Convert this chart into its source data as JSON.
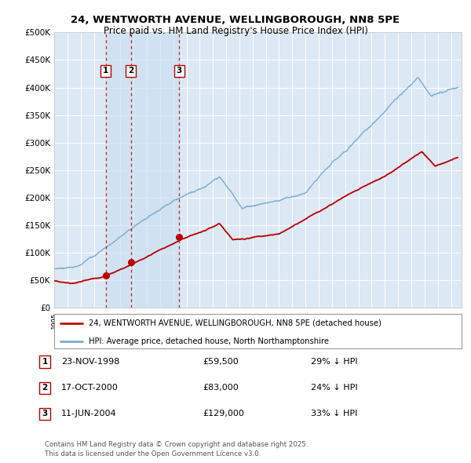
{
  "title": "24, WENTWORTH AVENUE, WELLINGBOROUGH, NN8 5PE",
  "subtitle": "Price paid vs. HM Land Registry's House Price Index (HPI)",
  "legend_line1": "24, WENTWORTH AVENUE, WELLINGBOROUGH, NN8 5PE (detached house)",
  "legend_line2": "HPI: Average price, detached house, North Northamptonshire",
  "footer": "Contains HM Land Registry data © Crown copyright and database right 2025.\nThis data is licensed under the Open Government Licence v3.0.",
  "sales": [
    {
      "num": 1,
      "date": "23-NOV-1998",
      "price": 59500,
      "hpi_note": "29% ↓ HPI",
      "year": 1998.9
    },
    {
      "num": 2,
      "date": "17-OCT-2000",
      "price": 83000,
      "hpi_note": "24% ↓ HPI",
      "year": 2000.8
    },
    {
      "num": 3,
      "date": "11-JUN-2004",
      "price": 129000,
      "hpi_note": "33% ↓ HPI",
      "year": 2004.45
    }
  ],
  "red_color": "#bb0000",
  "blue_color": "#7aaccc",
  "shade_color": "#cce0f0",
  "background_color": "#dce8f4",
  "grid_color": "#ffffff",
  "ylim": [
    0,
    500000
  ],
  "yticks": [
    0,
    50000,
    100000,
    150000,
    200000,
    250000,
    300000,
    350000,
    400000,
    450000,
    500000
  ],
  "year_start": 1995,
  "year_end": 2025
}
